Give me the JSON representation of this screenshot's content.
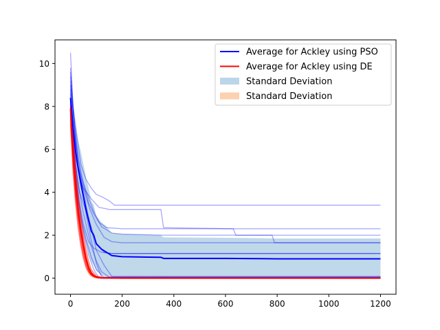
{
  "chart_data": {
    "type": "line",
    "title": "",
    "xlabel": "",
    "ylabel": "",
    "xlim": [
      -60,
      1260
    ],
    "ylim": [
      -0.75,
      11.1
    ],
    "x_ticks": [
      0,
      200,
      400,
      600,
      800,
      1000,
      1200
    ],
    "y_ticks": [
      0,
      2,
      4,
      6,
      8,
      10
    ],
    "grid": false,
    "legend_placement": "top-right",
    "legend": [
      {
        "label": "Average for Ackley using PSO",
        "kind": "line",
        "color": "#0000ff"
      },
      {
        "label": "Average for Ackley using DE",
        "kind": "line",
        "color": "#ff0000"
      },
      {
        "label": "Standard Deviation",
        "kind": "patch",
        "color": "#bcd6e9"
      },
      {
        "label": "Standard Deviation",
        "kind": "patch",
        "color": "#fdd0b0"
      }
    ],
    "series": [
      {
        "name": "Average for Ackley using PSO",
        "color": "#0000ff",
        "x": [
          0,
          10,
          20,
          30,
          40,
          50,
          60,
          70,
          80,
          90,
          100,
          120,
          140,
          160,
          200,
          300,
          350,
          360,
          600,
          800,
          1200
        ],
        "values": [
          8.4,
          7.0,
          5.9,
          5.1,
          4.4,
          3.8,
          3.2,
          2.7,
          2.2,
          2.0,
          1.6,
          1.35,
          1.2,
          1.05,
          1.0,
          0.98,
          0.97,
          0.92,
          0.92,
          0.9,
          0.9
        ]
      },
      {
        "name": "Average for Ackley using DE",
        "color": "#ff0000",
        "x": [
          0,
          10,
          20,
          30,
          40,
          50,
          60,
          70,
          80,
          90,
          100,
          120,
          150,
          200,
          300,
          1200
        ],
        "values": [
          7.9,
          5.8,
          4.3,
          3.1,
          2.2,
          1.5,
          0.9,
          0.5,
          0.25,
          0.12,
          0.06,
          0.02,
          0.01,
          0.0,
          0.0,
          0.0
        ]
      }
    ],
    "bands": [
      {
        "color": "#bcd6e9",
        "x": [
          0,
          10,
          20,
          30,
          40,
          50,
          60,
          70,
          80,
          90,
          100,
          120,
          140,
          160,
          200,
          300,
          350,
          360,
          600,
          800,
          1200
        ],
        "lower": [
          7.6,
          6.0,
          4.7,
          3.8,
          2.9,
          2.3,
          1.7,
          1.2,
          0.8,
          0.6,
          0.35,
          0.15,
          0.05,
          0.0,
          0.0,
          0.0,
          0.0,
          0.0,
          0.0,
          0.0,
          0.0
        ],
        "upper": [
          9.2,
          8.0,
          7.1,
          6.4,
          5.9,
          5.3,
          4.7,
          4.2,
          3.6,
          3.4,
          2.9,
          2.6,
          2.4,
          2.1,
          2.05,
          2.02,
          2.0,
          1.9,
          1.88,
          1.85,
          1.85
        ]
      },
      {
        "color": "#fdd0b0",
        "x": [
          0,
          10,
          20,
          30,
          40,
          50,
          60,
          70,
          80,
          90,
          100,
          120,
          150,
          200,
          300,
          1200
        ],
        "lower": [
          7.4,
          5.0,
          3.5,
          2.4,
          1.5,
          0.9,
          0.4,
          0.15,
          0.05,
          0.0,
          0.0,
          0.0,
          0.0,
          0.0,
          0.0,
          0.0
        ],
        "upper": [
          8.4,
          6.6,
          5.1,
          3.8,
          2.9,
          2.1,
          1.4,
          0.85,
          0.45,
          0.25,
          0.12,
          0.05,
          0.02,
          0.0,
          0.0,
          0.0
        ]
      }
    ],
    "individual_runs": [
      {
        "group": "PSO",
        "color": "#0000ff",
        "x": [
          0,
          10,
          25,
          40,
          60,
          80,
          100,
          120,
          150,
          170,
          200,
          350,
          1200
        ],
        "values": [
          10.5,
          8.0,
          6.6,
          5.3,
          4.6,
          4.2,
          3.9,
          3.8,
          3.6,
          3.4,
          3.4,
          3.4,
          3.4
        ]
      },
      {
        "group": "PSO",
        "color": "#0000ff",
        "x": [
          0,
          10,
          20,
          30,
          50,
          80,
          110,
          150,
          200,
          350,
          360,
          630,
          1200
        ],
        "values": [
          9.8,
          7.6,
          6.0,
          5.0,
          4.2,
          3.7,
          3.3,
          3.2,
          3.2,
          3.2,
          2.35,
          2.3,
          2.3
        ]
      },
      {
        "group": "PSO",
        "color": "#0000ff",
        "x": [
          0,
          15,
          30,
          50,
          70,
          90,
          110,
          140,
          200,
          350,
          630,
          640,
          1200
        ],
        "values": [
          9.4,
          7.2,
          5.6,
          4.4,
          3.5,
          3.0,
          2.6,
          2.35,
          2.3,
          2.3,
          2.3,
          2.0,
          2.0
        ]
      },
      {
        "group": "PSO",
        "color": "#0000ff",
        "x": [
          0,
          10,
          25,
          45,
          65,
          90,
          120,
          160,
          200,
          360,
          780,
          790,
          1200
        ],
        "values": [
          9.0,
          6.8,
          5.4,
          4.6,
          3.9,
          3.1,
          2.4,
          2.1,
          2.05,
          2.0,
          2.0,
          1.65,
          1.65
        ]
      },
      {
        "group": "PSO",
        "color": "#0000ff",
        "x": [
          0,
          10,
          20,
          35,
          55,
          75,
          100,
          130,
          160,
          200,
          400,
          1200
        ],
        "values": [
          8.8,
          6.9,
          5.6,
          4.7,
          4.0,
          3.2,
          2.5,
          1.9,
          1.7,
          1.65,
          1.65,
          1.65
        ]
      },
      {
        "group": "PSO",
        "color": "#0000ff",
        "x": [
          0,
          10,
          20,
          35,
          55,
          80,
          100,
          130,
          160,
          1200
        ],
        "values": [
          8.2,
          6.5,
          5.2,
          4.0,
          3.3,
          2.4,
          1.6,
          1.2,
          1.15,
          1.15
        ]
      },
      {
        "group": "PSO",
        "color": "#0000ff",
        "x": [
          0,
          10,
          20,
          35,
          50,
          70,
          90,
          120,
          160,
          1200
        ],
        "values": [
          8.6,
          6.4,
          4.9,
          3.5,
          2.5,
          1.7,
          1.4,
          1.2,
          1.15,
          1.15
        ]
      },
      {
        "group": "PSO",
        "color": "#0000ff",
        "x": [
          0,
          10,
          20,
          30,
          45,
          60,
          80,
          100,
          130,
          160,
          1200
        ],
        "values": [
          9.2,
          7.8,
          6.5,
          5.5,
          4.4,
          3.4,
          2.3,
          1.3,
          0.6,
          0.08,
          0.08
        ]
      },
      {
        "group": "PSO",
        "color": "#0000ff",
        "x": [
          0,
          10,
          20,
          30,
          45,
          60,
          80,
          100,
          120,
          150,
          1200
        ],
        "values": [
          8.0,
          6.6,
          5.3,
          4.4,
          3.3,
          2.5,
          1.5,
          0.8,
          0.3,
          0.05,
          0.05
        ]
      },
      {
        "group": "PSO",
        "color": "#0000ff",
        "x": [
          0,
          10,
          20,
          30,
          45,
          60,
          80,
          100,
          130,
          1200
        ],
        "values": [
          7.6,
          5.8,
          4.6,
          3.6,
          2.6,
          1.8,
          1.0,
          0.4,
          0.02,
          0.02
        ]
      },
      {
        "group": "PSO",
        "color": "#0000ff",
        "x": [
          0,
          10,
          20,
          30,
          40,
          55,
          70,
          90,
          110,
          1200
        ],
        "values": [
          8.3,
          6.2,
          4.8,
          3.7,
          2.8,
          1.9,
          1.1,
          0.4,
          0.02,
          0.02
        ]
      },
      {
        "group": "PSO",
        "color": "#0000ff",
        "x": [
          0,
          10,
          20,
          30,
          45,
          60,
          80,
          100,
          120,
          1200
        ],
        "values": [
          9.6,
          8.0,
          6.4,
          5.2,
          4.2,
          3.0,
          1.8,
          0.7,
          0.05,
          0.05
        ]
      },
      {
        "group": "DE",
        "color": "#ff0000",
        "x": [
          0,
          10,
          20,
          30,
          40,
          50,
          60,
          70,
          80,
          100,
          130,
          1200
        ],
        "values": [
          8.0,
          6.4,
          4.9,
          3.6,
          2.6,
          1.7,
          1.0,
          0.55,
          0.25,
          0.06,
          0.0,
          0.0
        ]
      },
      {
        "group": "DE",
        "color": "#ff0000",
        "x": [
          0,
          10,
          20,
          30,
          40,
          50,
          60,
          70,
          80,
          100,
          120,
          1200
        ],
        "values": [
          7.6,
          5.4,
          3.9,
          2.8,
          1.9,
          1.2,
          0.7,
          0.35,
          0.15,
          0.03,
          0.0,
          0.0
        ]
      },
      {
        "group": "DE",
        "color": "#ff0000",
        "x": [
          0,
          10,
          20,
          30,
          40,
          50,
          60,
          70,
          80,
          100,
          130,
          1200
        ],
        "values": [
          8.2,
          6.0,
          4.4,
          3.3,
          2.4,
          1.6,
          1.0,
          0.55,
          0.2,
          0.05,
          0.0,
          0.0
        ]
      },
      {
        "group": "DE",
        "color": "#ff0000",
        "x": [
          0,
          10,
          20,
          30,
          40,
          50,
          60,
          75,
          90,
          110,
          1200
        ],
        "values": [
          7.2,
          4.9,
          3.4,
          2.3,
          1.5,
          0.9,
          0.5,
          0.2,
          0.06,
          0.0,
          0.0
        ]
      },
      {
        "group": "DE",
        "color": "#ff0000",
        "x": [
          0,
          10,
          20,
          30,
          40,
          50,
          60,
          70,
          80,
          100,
          130,
          1200
        ],
        "values": [
          7.9,
          6.6,
          5.2,
          3.9,
          2.9,
          2.0,
          1.3,
          0.8,
          0.4,
          0.1,
          0.0,
          0.0
        ]
      },
      {
        "group": "DE",
        "color": "#ff0000",
        "x": [
          0,
          10,
          20,
          30,
          40,
          50,
          60,
          70,
          85,
          110,
          1200
        ],
        "values": [
          7.4,
          5.2,
          3.7,
          2.6,
          1.7,
          1.05,
          0.6,
          0.3,
          0.1,
          0.01,
          0.0
        ]
      },
      {
        "group": "DE",
        "color": "#ff0000",
        "x": [
          0,
          10,
          20,
          30,
          40,
          50,
          60,
          70,
          80,
          100,
          120,
          1200
        ],
        "values": [
          8.1,
          5.9,
          4.5,
          3.3,
          2.3,
          1.5,
          0.9,
          0.45,
          0.2,
          0.05,
          0.0,
          0.0
        ]
      },
      {
        "group": "DE",
        "color": "#ff0000",
        "x": [
          0,
          10,
          20,
          30,
          40,
          50,
          60,
          70,
          80,
          100,
          1200
        ],
        "values": [
          7.7,
          5.6,
          4.0,
          2.9,
          2.0,
          1.3,
          0.75,
          0.4,
          0.15,
          0.02,
          0.0
        ]
      }
    ]
  }
}
